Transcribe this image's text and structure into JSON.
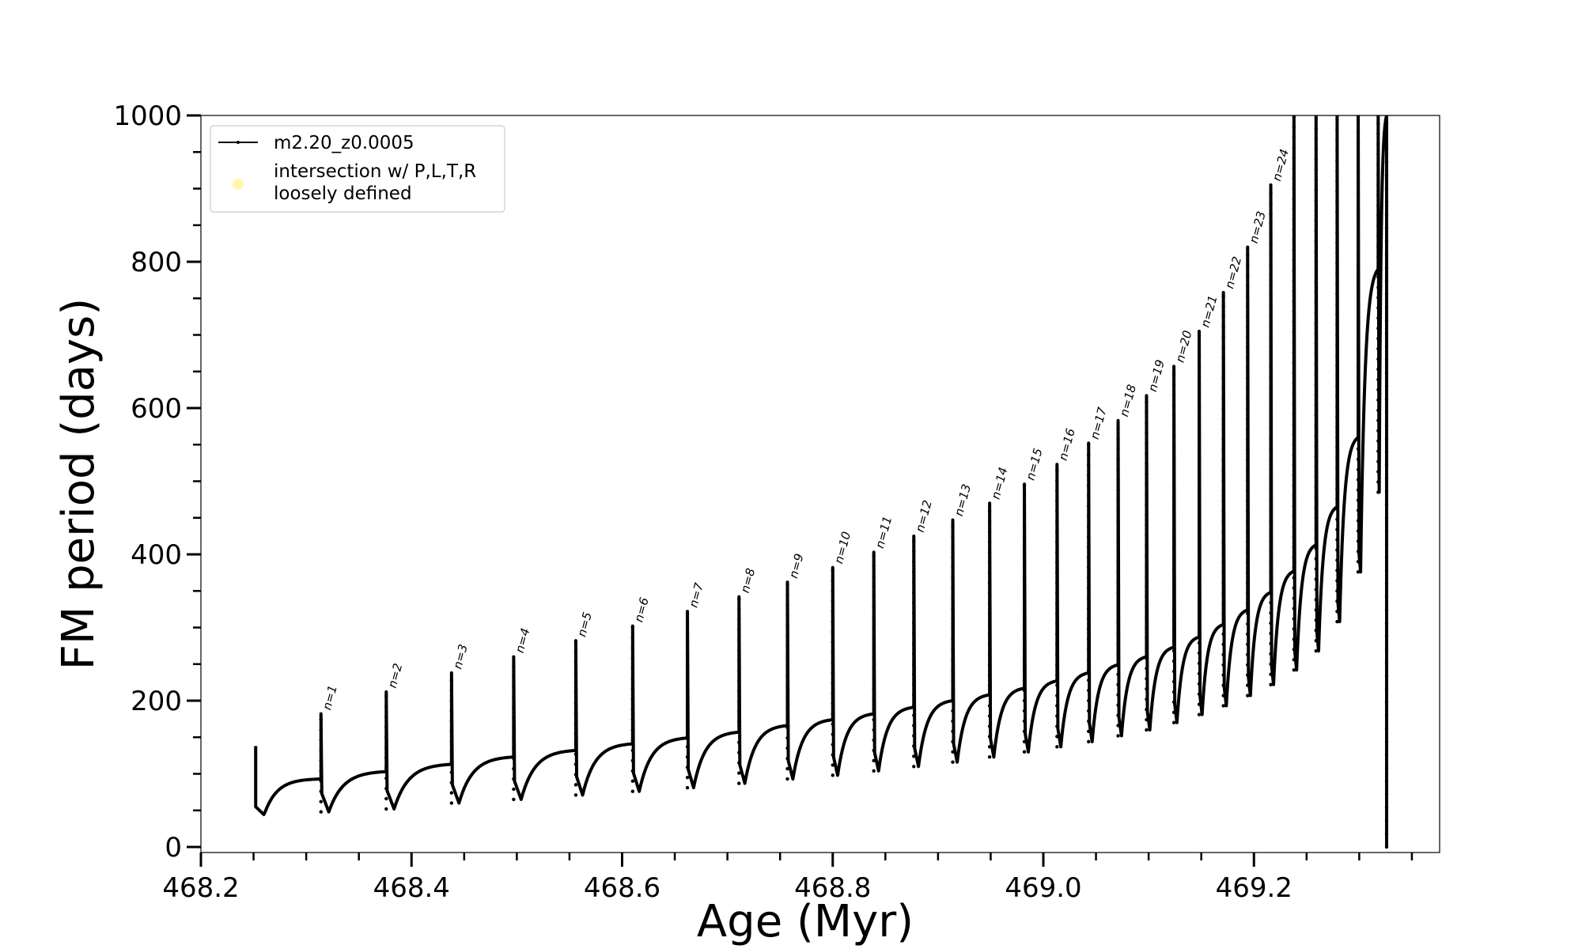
{
  "chart_data": {
    "type": "line",
    "title": "",
    "xlabel": "Age (Myr)",
    "ylabel": "FM period (days)",
    "xlim": [
      468.2,
      469.38
    ],
    "ylim": [
      0,
      1000
    ],
    "x_ticks": [
      468.2,
      468.4,
      468.6,
      468.8,
      469.0,
      469.2
    ],
    "x_tick_labels": [
      "468.2",
      "468.4",
      "468.6",
      "468.8",
      "469.0",
      "469.2"
    ],
    "y_ticks": [
      0,
      200,
      400,
      600,
      800,
      1000
    ],
    "y_tick_labels": [
      "0",
      "200",
      "400",
      "600",
      "800",
      "1000"
    ],
    "grid": false,
    "legend": {
      "placement": "top-left",
      "entries": [
        {
          "label": "m2.20_z0.0005",
          "color": "#000000",
          "marker": "line"
        },
        {
          "label": "intersection w/ P,L,T,R loosely defined",
          "label_lines": [
            "intersection w/ P,L,T,R",
            "loosely defined"
          ],
          "color": "#fff7b0",
          "marker": "dot"
        }
      ]
    },
    "start_point": {
      "x": 468.252,
      "y": 138,
      "min_x": 468.26,
      "min_y": 44,
      "end_y": 93
    },
    "pulses": [
      {
        "label": "n=1",
        "x": 468.314,
        "peak": 182,
        "dip": 48,
        "plateau": 103
      },
      {
        "label": "n=2",
        "x": 468.376,
        "peak": 212,
        "dip": 52,
        "plateau": 113
      },
      {
        "label": "n=3",
        "x": 468.438,
        "peak": 238,
        "dip": 60,
        "plateau": 123
      },
      {
        "label": "n=4",
        "x": 468.497,
        "peak": 260,
        "dip": 65,
        "plateau": 132
      },
      {
        "label": "n=5",
        "x": 468.556,
        "peak": 282,
        "dip": 71,
        "plateau": 141
      },
      {
        "label": "n=6",
        "x": 468.61,
        "peak": 302,
        "dip": 76,
        "plateau": 149
      },
      {
        "label": "n=7",
        "x": 468.662,
        "peak": 322,
        "dip": 81,
        "plateau": 157
      },
      {
        "label": "n=8",
        "x": 468.711,
        "peak": 342,
        "dip": 87,
        "plateau": 166
      },
      {
        "label": "n=9",
        "x": 468.757,
        "peak": 362,
        "dip": 93,
        "plateau": 174
      },
      {
        "label": "n=10",
        "x": 468.8,
        "peak": 382,
        "dip": 98,
        "plateau": 182
      },
      {
        "label": "n=11",
        "x": 468.839,
        "peak": 403,
        "dip": 104,
        "plateau": 191
      },
      {
        "label": "n=12",
        "x": 468.877,
        "peak": 425,
        "dip": 110,
        "plateau": 200
      },
      {
        "label": "n=13",
        "x": 468.914,
        "peak": 447,
        "dip": 116,
        "plateau": 208
      },
      {
        "label": "n=14",
        "x": 468.949,
        "peak": 470,
        "dip": 123,
        "plateau": 217
      },
      {
        "label": "n=15",
        "x": 468.982,
        "peak": 496,
        "dip": 130,
        "plateau": 227
      },
      {
        "label": "n=16",
        "x": 469.013,
        "peak": 523,
        "dip": 137,
        "plateau": 238
      },
      {
        "label": "n=17",
        "x": 469.043,
        "peak": 552,
        "dip": 144,
        "plateau": 249
      },
      {
        "label": "n=18",
        "x": 469.071,
        "peak": 583,
        "dip": 152,
        "plateau": 260
      },
      {
        "label": "n=19",
        "x": 469.098,
        "peak": 617,
        "dip": 160,
        "plateau": 273
      },
      {
        "label": "n=20",
        "x": 469.124,
        "peak": 657,
        "dip": 170,
        "plateau": 287
      },
      {
        "label": "n=21",
        "x": 469.148,
        "peak": 705,
        "dip": 181,
        "plateau": 304
      },
      {
        "label": "n=22",
        "x": 469.171,
        "peak": 758,
        "dip": 193,
        "plateau": 324
      },
      {
        "label": "n=23",
        "x": 469.194,
        "peak": 820,
        "dip": 207,
        "plateau": 348
      },
      {
        "label": "n=24",
        "x": 469.216,
        "peak": 905,
        "dip": 222,
        "plateau": 377
      },
      {
        "label": "",
        "x": 469.238,
        "peak": 1000,
        "dip": 242,
        "plateau": 413
      },
      {
        "label": "",
        "x": 469.259,
        "peak": 1000,
        "dip": 268,
        "plateau": 465
      },
      {
        "label": "",
        "x": 469.279,
        "peak": 1000,
        "dip": 308,
        "plateau": 560
      },
      {
        "label": "",
        "x": 469.299,
        "peak": 1000,
        "dip": 376,
        "plateau": 790
      },
      {
        "label": "",
        "x": 469.318,
        "peak": 1000,
        "dip": 485,
        "plateau": 1000
      }
    ],
    "final_drop": {
      "x": 469.326,
      "top": 1000,
      "bottom": 0
    }
  }
}
